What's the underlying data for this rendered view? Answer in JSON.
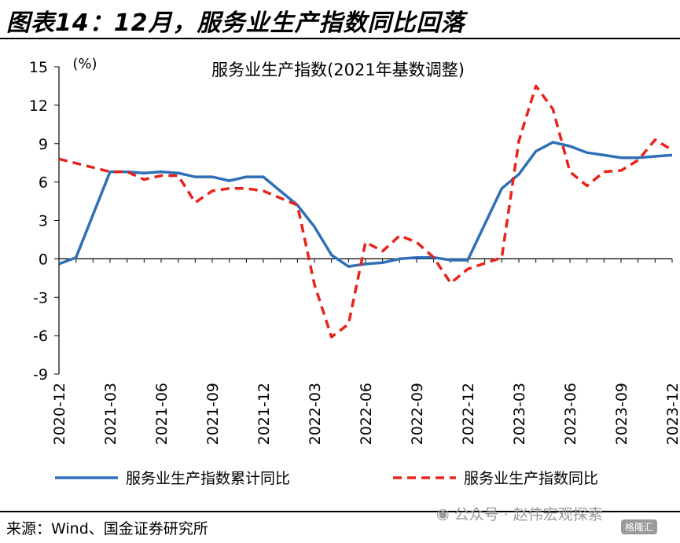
{
  "header": {
    "title": "图表14：12月，服务业生产指数同比回落"
  },
  "footer": {
    "source": "来源：Wind、国金证券研究所",
    "watermark": "公众号 · 赵伟宏观探索",
    "badge": "格隆汇"
  },
  "chart_data": {
    "type": "line",
    "title": "服务业生产指数(2021年基数调整)",
    "ylabel": "(%)",
    "xlabel": "",
    "ylim": [
      -9,
      15
    ],
    "yticks": [
      15,
      12,
      9,
      6,
      3,
      0,
      -3,
      -6,
      -9
    ],
    "xticks": [
      "2020-12",
      "2021-03",
      "2021-06",
      "2021-09",
      "2021-12",
      "2022-03",
      "2022-06",
      "2022-09",
      "2022-12",
      "2023-03",
      "2023-06",
      "2023-09",
      "2023-12"
    ],
    "x": [
      "2020-12",
      "2021-01",
      "2021-02",
      "2021-03",
      "2021-04",
      "2021-05",
      "2021-06",
      "2021-07",
      "2021-08",
      "2021-09",
      "2021-10",
      "2021-11",
      "2021-12",
      "2022-01",
      "2022-02",
      "2022-03",
      "2022-04",
      "2022-05",
      "2022-06",
      "2022-07",
      "2022-08",
      "2022-09",
      "2022-10",
      "2022-11",
      "2022-12",
      "2023-01",
      "2023-02",
      "2023-03",
      "2023-04",
      "2023-05",
      "2023-06",
      "2023-07",
      "2023-08",
      "2023-09",
      "2023-10",
      "2023-11",
      "2023-12"
    ],
    "legend_position": "bottom",
    "grid": false,
    "series": [
      {
        "name": "服务业生产指数累计同比",
        "color": "#2e6fb7",
        "style": "solid",
        "values": [
          -0.4,
          0.1,
          null,
          6.8,
          6.8,
          6.7,
          6.8,
          6.7,
          6.4,
          6.4,
          6.1,
          6.4,
          6.4,
          null,
          4.2,
          2.5,
          0.3,
          -0.6,
          -0.4,
          -0.3,
          0.0,
          0.1,
          0.1,
          -0.1,
          -0.1,
          null,
          5.5,
          6.6,
          8.4,
          9.1,
          8.8,
          8.3,
          8.1,
          7.9,
          7.9,
          8.0,
          8.1
        ]
      },
      {
        "name": "服务业生产指数同比",
        "color": "#e8231a",
        "style": "dashed",
        "values": [
          7.8,
          null,
          null,
          6.8,
          6.8,
          6.2,
          6.5,
          6.5,
          4.4,
          5.3,
          5.5,
          5.5,
          5.3,
          null,
          4.2,
          -2.0,
          -6.1,
          -5.1,
          1.3,
          0.6,
          1.8,
          1.3,
          0.1,
          -1.9,
          -0.8,
          null,
          0.1,
          9.2,
          13.5,
          11.7,
          6.8,
          5.7,
          6.8,
          6.9,
          7.7,
          9.3,
          8.5
        ]
      }
    ]
  }
}
